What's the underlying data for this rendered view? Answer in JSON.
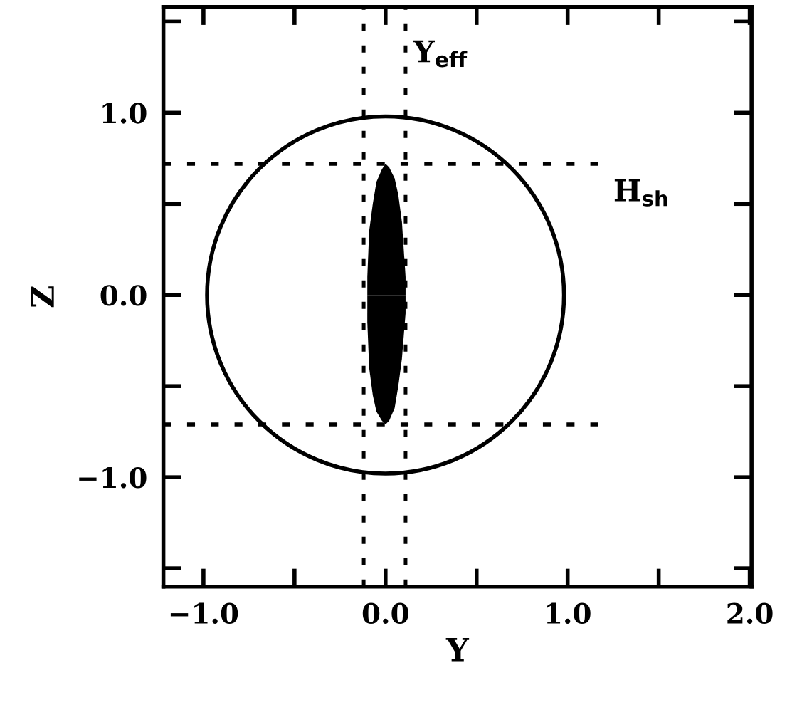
{
  "chart_data": {
    "type": "line",
    "xlabel": "Y",
    "ylabel": "Z",
    "xlim": [
      -1.22,
      2.01
    ],
    "ylim": [
      -1.6,
      1.58
    ],
    "xticks": [
      {
        "value": -1.0,
        "label": "−1.0"
      },
      {
        "value": -0.5,
        "label": null
      },
      {
        "value": 0.0,
        "label": "0.0"
      },
      {
        "value": 0.5,
        "label": null
      },
      {
        "value": 1.0,
        "label": "1.0"
      },
      {
        "value": 1.5,
        "label": null
      },
      {
        "value": 2.0,
        "label": "2.0"
      }
    ],
    "yticks": [
      {
        "value": -1.5,
        "label": null
      },
      {
        "value": -1.0,
        "label": "−1.0"
      },
      {
        "value": -0.5,
        "label": null
      },
      {
        "value": 0.0,
        "label": "0.0"
      },
      {
        "value": 0.5,
        "label": null
      },
      {
        "value": 1.0,
        "label": "1.0"
      },
      {
        "value": 1.5,
        "label": null
      }
    ],
    "grid": false,
    "series": [
      {
        "type": "area",
        "color": "#000000",
        "x": [
          -0.1,
          -0.09,
          -0.07,
          -0.05,
          -0.02,
          0.0,
          0.02,
          0.05,
          0.07,
          0.09,
          0.11
        ],
        "values": [
          0.1,
          0.35,
          0.5,
          0.62,
          0.69,
          0.72,
          0.7,
          0.64,
          0.55,
          0.4,
          0.1
        ]
      },
      {
        "type": "area",
        "color": "#000000",
        "x": [
          -0.1,
          -0.09,
          -0.07,
          -0.05,
          -0.02,
          0.0,
          0.02,
          0.05,
          0.07,
          0.09,
          0.11
        ],
        "values": [
          -0.15,
          -0.4,
          -0.55,
          -0.64,
          -0.69,
          -0.71,
          -0.69,
          -0.62,
          -0.5,
          -0.35,
          -0.1
        ]
      },
      {
        "color": "#000000",
        "line_style": "dotted",
        "x": [
          -1.22,
          1.17
        ],
        "values": [
          0.72,
          0.72
        ]
      },
      {
        "color": "#000000",
        "line_style": "dotted",
        "x": [
          -1.22,
          1.17
        ],
        "values": [
          -0.71,
          -0.71
        ]
      }
    ],
    "ref_lines": [
      {
        "axis": "x",
        "value": -0.12,
        "color": "#000000",
        "line_style": "dotted"
      },
      {
        "axis": "x",
        "value": 0.11,
        "color": "#000000",
        "line_style": "dotted"
      }
    ],
    "annotations": [
      "Y$_{eff}$",
      "H$_{sh}$"
    ]
  }
}
